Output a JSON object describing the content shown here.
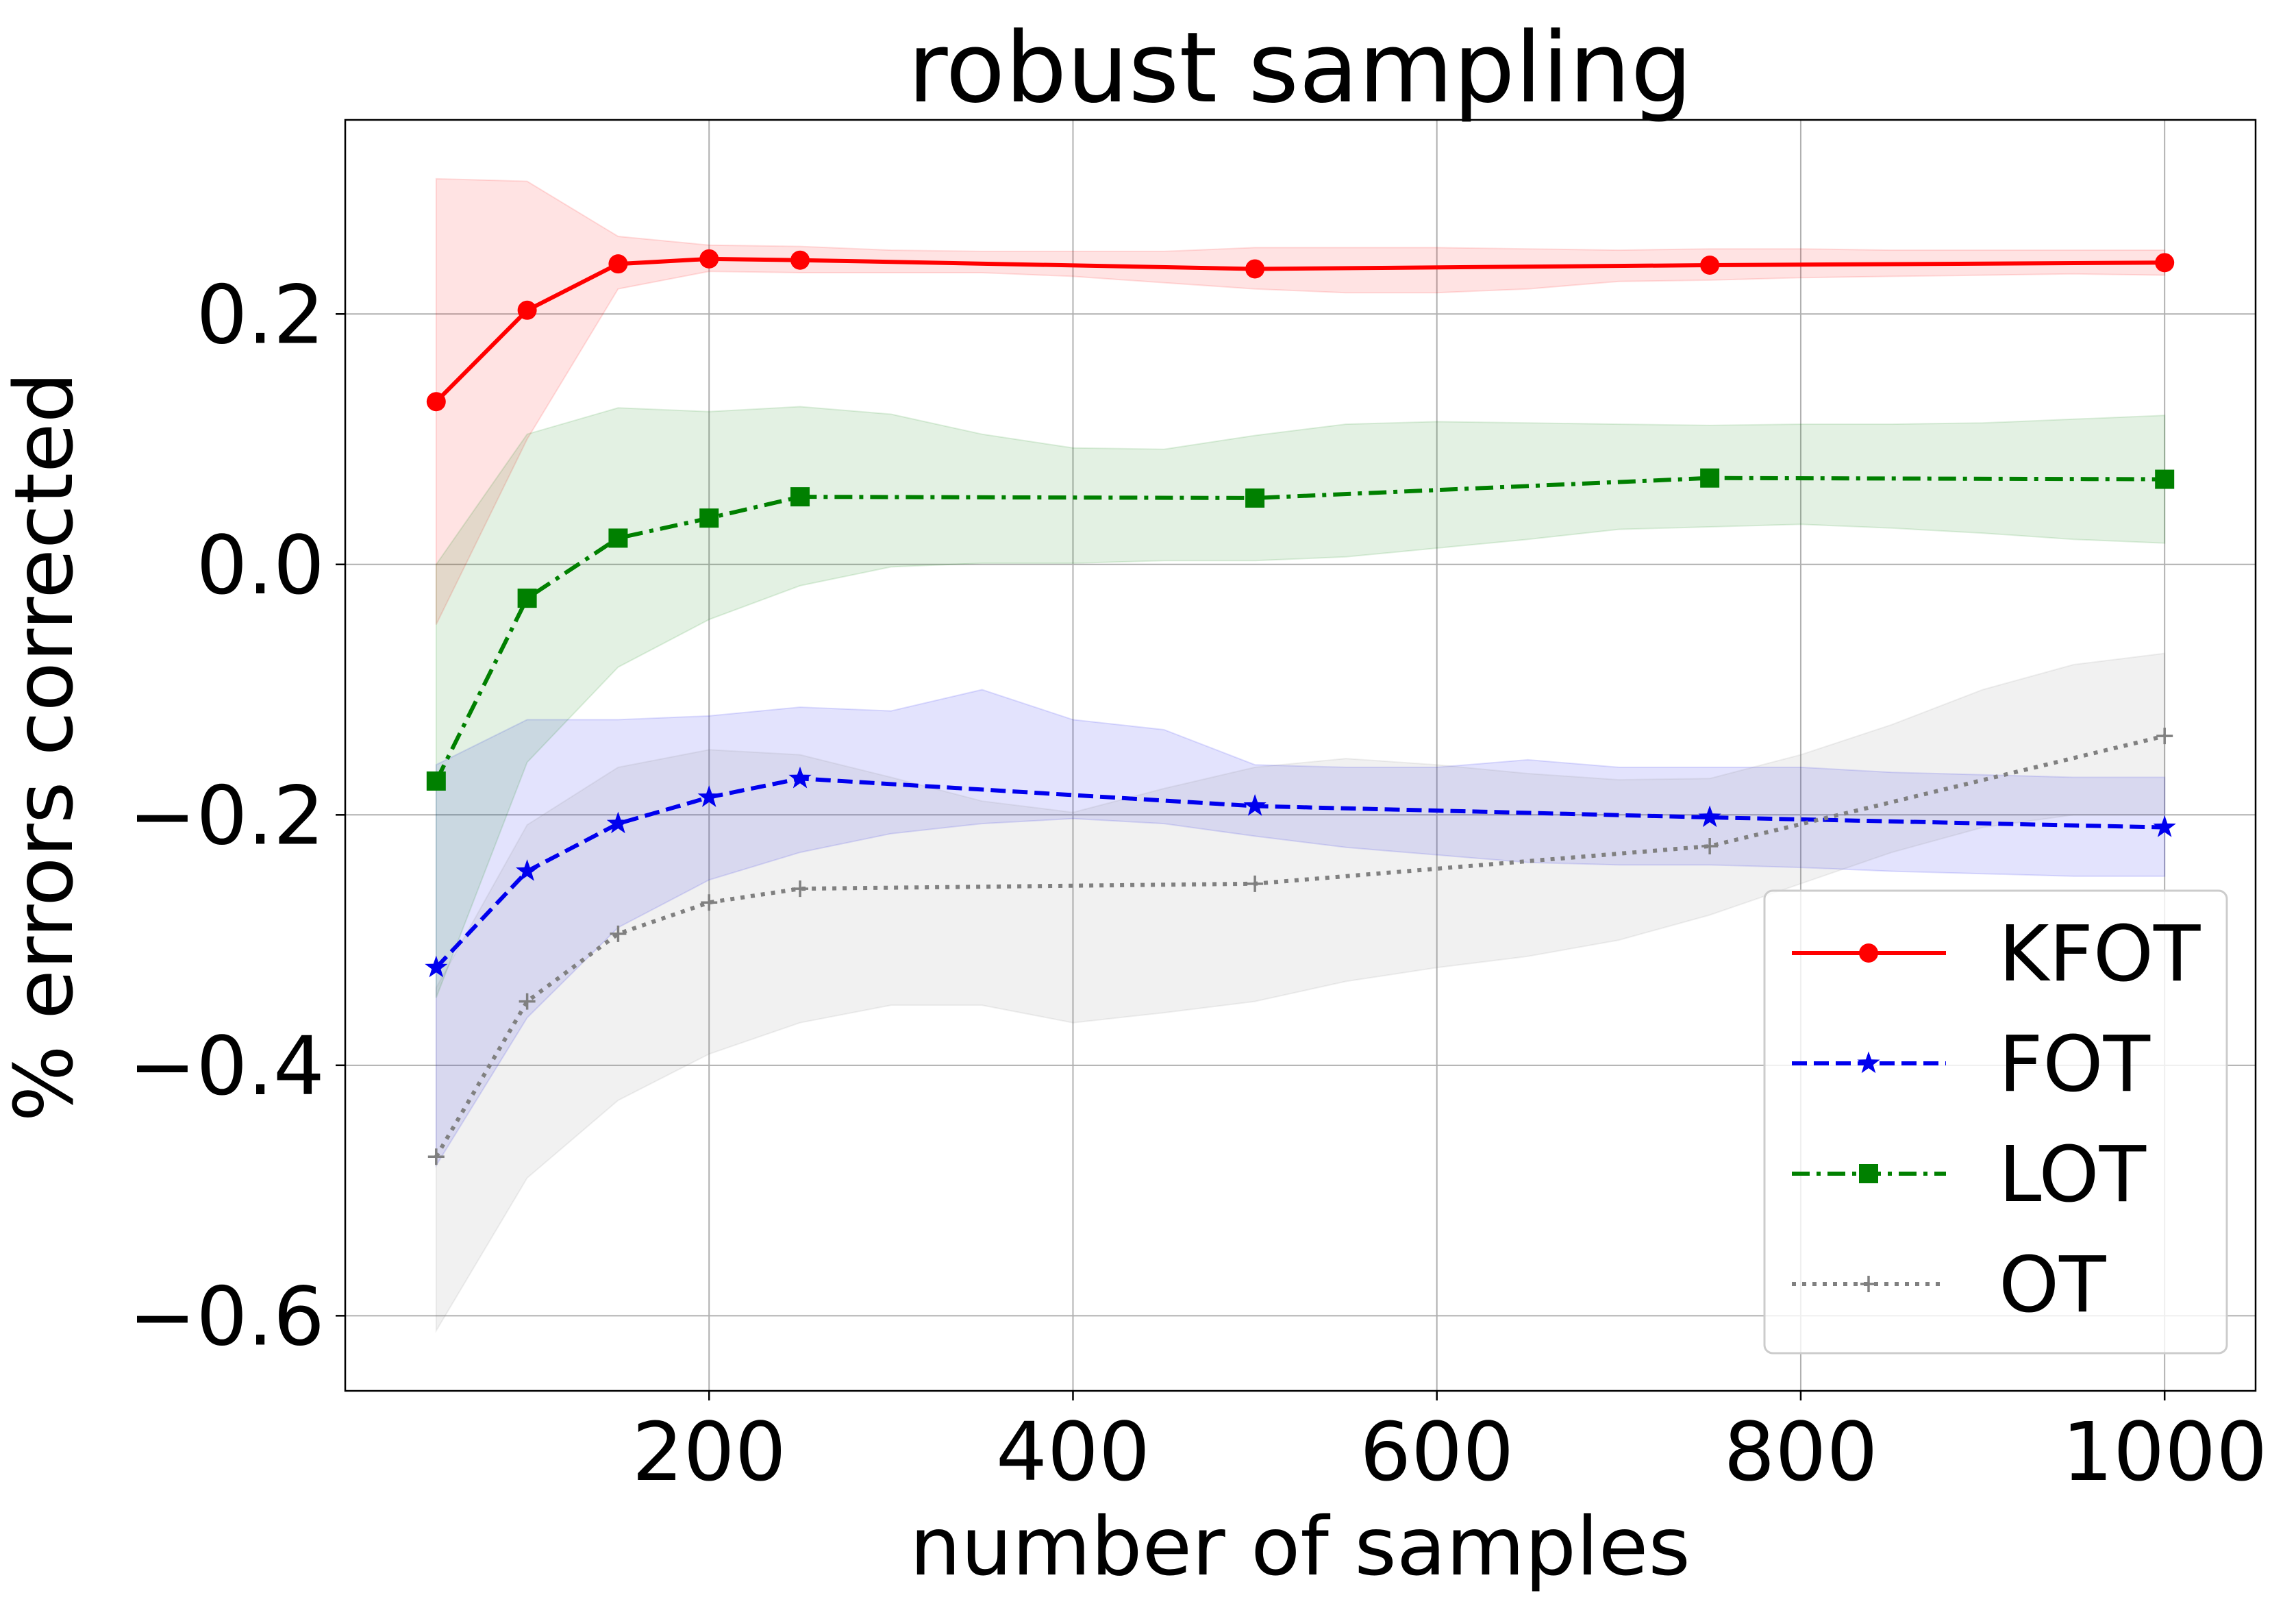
{
  "chart_data": {
    "type": "line",
    "title": "robust sampling",
    "xlabel": "number of samples",
    "ylabel": "% errors corrected",
    "xlim": [
      0,
      1050
    ],
    "ylim": [
      -0.66,
      0.355
    ],
    "xticks": [
      200,
      400,
      600,
      800,
      1000
    ],
    "xtick_labels": [
      "200",
      "400",
      "600",
      "800",
      "1000"
    ],
    "yticks": [
      -0.6,
      -0.4,
      -0.2,
      0.0,
      0.2
    ],
    "ytick_labels": [
      "−0.6",
      "−0.4",
      "−0.2",
      "0.0",
      "0.2"
    ],
    "grid": true,
    "legend_position": "lower-right",
    "series": [
      {
        "name": "KFOT",
        "color": "#ff0000",
        "line_style": "solid",
        "marker": "circle",
        "x": [
          50,
          100,
          150,
          200,
          250,
          500,
          750,
          1000
        ],
        "y": [
          0.13,
          0.203,
          0.24,
          0.244,
          0.243,
          0.236,
          0.239,
          0.241
        ],
        "band_x": [
          50,
          100,
          150,
          200,
          250,
          300,
          350,
          400,
          450,
          500,
          550,
          600,
          650,
          700,
          750,
          800,
          850,
          900,
          950,
          1000
        ],
        "band_upper": [
          0.308,
          0.306,
          0.262,
          0.255,
          0.254,
          0.251,
          0.25,
          0.25,
          0.25,
          0.253,
          0.253,
          0.253,
          0.252,
          0.251,
          0.252,
          0.252,
          0.251,
          0.251,
          0.251,
          0.251
        ],
        "band_lower": [
          -0.048,
          0.1,
          0.22,
          0.234,
          0.233,
          0.233,
          0.233,
          0.23,
          0.225,
          0.22,
          0.217,
          0.217,
          0.22,
          0.226,
          0.227,
          0.229,
          0.23,
          0.231,
          0.232,
          0.231
        ]
      },
      {
        "name": "FOT",
        "color": "#0000ee",
        "line_style": "dashed",
        "marker": "star",
        "x": [
          50,
          100,
          150,
          200,
          250,
          500,
          750,
          1000
        ],
        "y": [
          -0.322,
          -0.245,
          -0.207,
          -0.186,
          -0.171,
          -0.193,
          -0.202,
          -0.21
        ],
        "band_x": [
          50,
          100,
          150,
          200,
          250,
          300,
          350,
          400,
          450,
          500,
          550,
          600,
          650,
          700,
          750,
          800,
          850,
          900,
          950,
          1000
        ],
        "band_upper": [
          -0.16,
          -0.124,
          -0.124,
          -0.121,
          -0.114,
          -0.117,
          -0.1,
          -0.124,
          -0.132,
          -0.16,
          -0.162,
          -0.162,
          -0.156,
          -0.162,
          -0.162,
          -0.162,
          -0.166,
          -0.168,
          -0.17,
          -0.17
        ],
        "band_lower": [
          -0.48,
          -0.362,
          -0.29,
          -0.252,
          -0.23,
          -0.215,
          -0.207,
          -0.203,
          -0.207,
          -0.217,
          -0.226,
          -0.232,
          -0.238,
          -0.24,
          -0.24,
          -0.242,
          -0.245,
          -0.247,
          -0.249,
          -0.249
        ]
      },
      {
        "name": "LOT",
        "color": "#008000",
        "line_style": "dashdot",
        "marker": "square",
        "x": [
          50,
          100,
          150,
          200,
          250,
          500,
          750,
          1000
        ],
        "y": [
          -0.173,
          -0.027,
          0.021,
          0.037,
          0.054,
          0.053,
          0.069,
          0.068
        ],
        "band_x": [
          50,
          100,
          150,
          200,
          250,
          300,
          350,
          400,
          450,
          500,
          550,
          600,
          650,
          700,
          750,
          800,
          850,
          900,
          950,
          1000
        ],
        "band_upper": [
          0.0,
          0.104,
          0.125,
          0.122,
          0.126,
          0.12,
          0.104,
          0.093,
          0.092,
          0.103,
          0.112,
          0.114,
          0.113,
          0.112,
          0.111,
          0.112,
          0.112,
          0.113,
          0.116,
          0.119
        ],
        "band_lower": [
          -0.346,
          -0.158,
          -0.082,
          -0.044,
          -0.017,
          -0.002,
          0.001,
          0.001,
          0.003,
          0.003,
          0.006,
          0.013,
          0.02,
          0.028,
          0.03,
          0.032,
          0.029,
          0.025,
          0.02,
          0.017
        ]
      },
      {
        "name": "OT",
        "color": "#808080",
        "line_style": "dotted",
        "marker": "plus",
        "x": [
          50,
          100,
          150,
          200,
          250,
          500,
          750,
          1000
        ],
        "y": [
          -0.473,
          -0.349,
          -0.295,
          -0.27,
          -0.259,
          -0.255,
          -0.225,
          -0.137
        ],
        "band_x": [
          50,
          100,
          150,
          200,
          250,
          300,
          350,
          400,
          450,
          500,
          550,
          600,
          650,
          700,
          750,
          800,
          850,
          900,
          950,
          1000
        ],
        "band_upper": [
          -0.338,
          -0.208,
          -0.162,
          -0.148,
          -0.152,
          -0.17,
          -0.189,
          -0.198,
          -0.179,
          -0.162,
          -0.155,
          -0.16,
          -0.167,
          -0.172,
          -0.171,
          -0.152,
          -0.128,
          -0.1,
          -0.08,
          -0.071
        ],
        "band_lower": [
          -0.612,
          -0.49,
          -0.428,
          -0.391,
          -0.366,
          -0.352,
          -0.352,
          -0.366,
          -0.358,
          -0.349,
          -0.333,
          -0.322,
          -0.313,
          -0.3,
          -0.28,
          -0.255,
          -0.23,
          -0.21,
          -0.2,
          -0.2
        ]
      }
    ]
  }
}
